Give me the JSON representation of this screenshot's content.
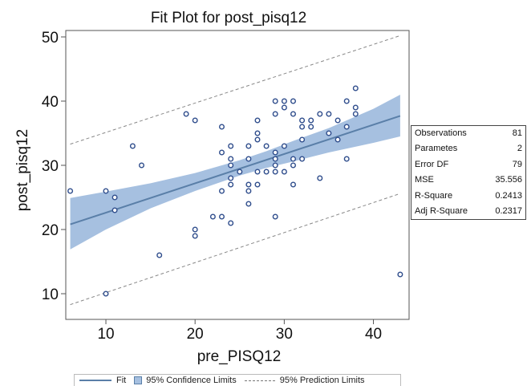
{
  "chart_data": {
    "type": "scatter",
    "title": "Fit Plot for post_pisq12",
    "xlabel": "pre_PISQ12",
    "ylabel": "post_pisq12",
    "xlim": [
      5.5,
      44
    ],
    "ylim": [
      6,
      51
    ],
    "xticks": [
      10,
      20,
      30,
      40
    ],
    "yticks": [
      10,
      20,
      30,
      40,
      50
    ],
    "grid": false,
    "fit": {
      "x": [
        6,
        43
      ],
      "y": [
        20.8,
        37.7
      ]
    },
    "confidence_limits": {
      "x": [
        6,
        10,
        15,
        20,
        25,
        28,
        31,
        35,
        40,
        43
      ],
      "lower": [
        16.9,
        20.0,
        23.3,
        26.0,
        28.4,
        29.6,
        30.6,
        32.0,
        33.5,
        34.5
      ],
      "upper": [
        24.9,
        25.9,
        27.2,
        28.8,
        30.8,
        32.2,
        33.8,
        35.8,
        38.8,
        41.0
      ]
    },
    "prediction_limits": {
      "x": [
        6,
        43
      ],
      "lower": [
        8.3,
        25.6
      ],
      "upper": [
        33.3,
        50.2
      ]
    },
    "points": [
      [
        6,
        26
      ],
      [
        10,
        10
      ],
      [
        10,
        26
      ],
      [
        11,
        23
      ],
      [
        11,
        25
      ],
      [
        13,
        33
      ],
      [
        14,
        30
      ],
      [
        16,
        16
      ],
      [
        19,
        38
      ],
      [
        20,
        19
      ],
      [
        20,
        20
      ],
      [
        20,
        37
      ],
      [
        22,
        22
      ],
      [
        23,
        22
      ],
      [
        23,
        26
      ],
      [
        23,
        32
      ],
      [
        23,
        36
      ],
      [
        24,
        21
      ],
      [
        24,
        27
      ],
      [
        24,
        28
      ],
      [
        24,
        30
      ],
      [
        24,
        31
      ],
      [
        24,
        33
      ],
      [
        25,
        29
      ],
      [
        26,
        24
      ],
      [
        26,
        26
      ],
      [
        26,
        27
      ],
      [
        26,
        31
      ],
      [
        26,
        33
      ],
      [
        27,
        27
      ],
      [
        27,
        29
      ],
      [
        27,
        34
      ],
      [
        27,
        35
      ],
      [
        27,
        37
      ],
      [
        28,
        29
      ],
      [
        28,
        33
      ],
      [
        29,
        22
      ],
      [
        29,
        29
      ],
      [
        29,
        30
      ],
      [
        29,
        31
      ],
      [
        29,
        32
      ],
      [
        29,
        38
      ],
      [
        29,
        40
      ],
      [
        30,
        29
      ],
      [
        30,
        33
      ],
      [
        30,
        39
      ],
      [
        30,
        40
      ],
      [
        31,
        27
      ],
      [
        31,
        30
      ],
      [
        31,
        31
      ],
      [
        31,
        38
      ],
      [
        31,
        40
      ],
      [
        32,
        31
      ],
      [
        32,
        34
      ],
      [
        32,
        36
      ],
      [
        32,
        37
      ],
      [
        33,
        36
      ],
      [
        33,
        37
      ],
      [
        34,
        28
      ],
      [
        34,
        38
      ],
      [
        35,
        35
      ],
      [
        35,
        38
      ],
      [
        36,
        34
      ],
      [
        36,
        37
      ],
      [
        37,
        31
      ],
      [
        37,
        36
      ],
      [
        37,
        40
      ],
      [
        38,
        38
      ],
      [
        38,
        39
      ],
      [
        38,
        42
      ],
      [
        43,
        13
      ]
    ],
    "legend": {
      "position": "bottom",
      "entries": [
        "Fit",
        "95% Confidence Limits",
        "95% Prediction Limits"
      ]
    },
    "colors": {
      "fit": "#5a7fa8",
      "band": "#a6c0e0",
      "points": "#2f4d8c",
      "prediction": "#888888"
    }
  },
  "stats": [
    {
      "label": "Observations",
      "value": "81"
    },
    {
      "label": "Parametes",
      "value": "2"
    },
    {
      "label": "Error DF",
      "value": "79"
    },
    {
      "label": "MSE",
      "value": "35.556"
    },
    {
      "label": "R-Square",
      "value": "0.2413"
    },
    {
      "label": "Adj R-Square",
      "value": "0.2317"
    }
  ]
}
